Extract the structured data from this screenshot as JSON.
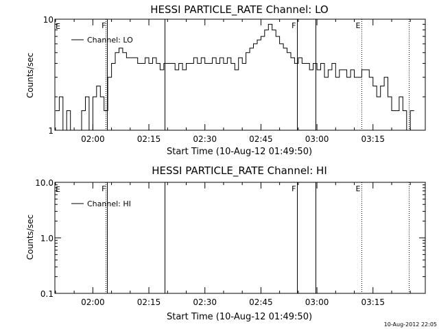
{
  "footer": {
    "timestamp": "10-Aug-2012 22:05"
  },
  "chart_data": [
    {
      "type": "line",
      "title": "HESSI PARTICLE_RATE Channel: LO",
      "xlabel": "Start Time (10-Aug-12 01:49:50)",
      "ylabel": "Counts/sec",
      "yscale": "log",
      "xlim": [
        "01:49:50",
        "03:29:00"
      ],
      "ylim": [
        1,
        10
      ],
      "x_tick_labels": [
        "02:00",
        "02:15",
        "02:30",
        "02:45",
        "03:00",
        "03:15"
      ],
      "y_tick_labels": [
        "1",
        "10"
      ],
      "legend": {
        "entries": [
          "Channel: LO"
        ],
        "placement": "top-left"
      },
      "vertical_markers": [
        {
          "time": "02:03:20",
          "style": "dotted",
          "label": ""
        },
        {
          "time": "02:03:50",
          "style": "solid",
          "label": "F"
        },
        {
          "time": "02:19:10",
          "style": "solid",
          "label": ""
        },
        {
          "time": "02:54:40",
          "style": "solid",
          "label": "F"
        },
        {
          "time": "02:59:40",
          "style": "solid",
          "label": ""
        },
        {
          "time": "03:12:00",
          "style": "dotted",
          "label": "E"
        },
        {
          "time": "03:24:40",
          "style": "dotted",
          "label": ""
        }
      ],
      "edge_labels": [
        "E"
      ],
      "series": [
        {
          "name": "Channel: LO",
          "x": [
            "01:50:00",
            "01:51:00",
            "01:52:00",
            "01:53:00",
            "01:54:00",
            "01:55:00",
            "01:56:00",
            "01:57:00",
            "01:58:00",
            "01:59:00",
            "02:00:00",
            "02:01:00",
            "02:02:00",
            "02:03:00",
            "02:04:00",
            "02:05:00",
            "02:06:00",
            "02:07:00",
            "02:08:00",
            "02:09:00",
            "02:10:00",
            "02:11:00",
            "02:12:00",
            "02:13:00",
            "02:14:00",
            "02:15:00",
            "02:16:00",
            "02:17:00",
            "02:18:00",
            "02:19:00",
            "02:20:00",
            "02:21:00",
            "02:22:00",
            "02:23:00",
            "02:24:00",
            "02:25:00",
            "02:26:00",
            "02:27:00",
            "02:28:00",
            "02:29:00",
            "02:30:00",
            "02:31:00",
            "02:32:00",
            "02:33:00",
            "02:34:00",
            "02:35:00",
            "02:36:00",
            "02:37:00",
            "02:38:00",
            "02:39:00",
            "02:40:00",
            "02:41:00",
            "02:42:00",
            "02:43:00",
            "02:44:00",
            "02:45:00",
            "02:46:00",
            "02:47:00",
            "02:48:00",
            "02:49:00",
            "02:50:00",
            "02:51:00",
            "02:52:00",
            "02:53:00",
            "02:54:00",
            "02:55:00",
            "02:56:00",
            "02:57:00",
            "02:58:00",
            "02:59:00",
            "03:00:00",
            "03:01:00",
            "03:02:00",
            "03:03:00",
            "03:04:00",
            "03:05:00",
            "03:06:00",
            "03:07:00",
            "03:08:00",
            "03:09:00",
            "03:10:00",
            "03:11:00",
            "03:12:00",
            "03:13:00",
            "03:14:00",
            "03:15:00",
            "03:16:00",
            "03:17:00",
            "03:18:00",
            "03:19:00",
            "03:20:00",
            "03:21:00",
            "03:22:00",
            "03:23:00",
            "03:24:00",
            "03:25:00"
          ],
          "values": [
            1.5,
            2,
            1,
            1.5,
            1,
            1,
            1,
            1.5,
            2,
            1,
            2,
            2.5,
            2,
            1.5,
            3,
            4,
            5,
            5.5,
            5,
            4.5,
            4.5,
            4.5,
            4,
            4,
            4.5,
            4,
            4.5,
            4,
            3.5,
            4,
            4,
            4,
            3.5,
            4,
            3.5,
            4,
            4,
            4.5,
            4,
            4.5,
            4,
            4,
            4.5,
            4,
            4.5,
            4,
            4.5,
            4,
            3.5,
            4.5,
            4,
            5,
            5.5,
            6,
            6.5,
            7,
            8,
            9,
            8,
            7,
            6,
            5.5,
            5,
            4.5,
            4,
            4.5,
            4,
            4,
            3.5,
            4,
            3.5,
            4,
            3,
            3.5,
            4,
            3,
            3.5,
            3.5,
            3,
            3.5,
            3,
            3,
            3.5,
            3.5,
            3,
            2.5,
            2,
            2.5,
            3,
            2,
            1.5,
            1.5,
            2,
            1.5,
            1,
            1.5
          ]
        }
      ]
    },
    {
      "type": "line",
      "title": "HESSI PARTICLE_RATE Channel: HI",
      "xlabel": "Start Time (10-Aug-12 01:49:50)",
      "ylabel": "Counts/sec",
      "yscale": "log",
      "xlim": [
        "01:49:50",
        "03:29:00"
      ],
      "ylim": [
        0.1,
        10
      ],
      "x_tick_labels": [
        "02:00",
        "02:15",
        "02:30",
        "02:45",
        "03:00",
        "03:15"
      ],
      "y_tick_labels": [
        "0.1",
        "1.0",
        "10.0"
      ],
      "legend": {
        "entries": [
          "Channel: HI"
        ],
        "placement": "top-left"
      },
      "vertical_markers": [
        {
          "time": "02:03:20",
          "style": "dotted",
          "label": ""
        },
        {
          "time": "02:03:50",
          "style": "solid",
          "label": "F"
        },
        {
          "time": "02:19:10",
          "style": "solid",
          "label": ""
        },
        {
          "time": "02:54:40",
          "style": "solid",
          "label": "F"
        },
        {
          "time": "02:59:40",
          "style": "solid",
          "label": ""
        },
        {
          "time": "03:12:00",
          "style": "dotted",
          "label": "E"
        },
        {
          "time": "03:24:40",
          "style": "dotted",
          "label": ""
        }
      ],
      "edge_labels": [
        "E"
      ],
      "series": [
        {
          "name": "Channel: HI",
          "x": [],
          "values": []
        }
      ]
    }
  ]
}
